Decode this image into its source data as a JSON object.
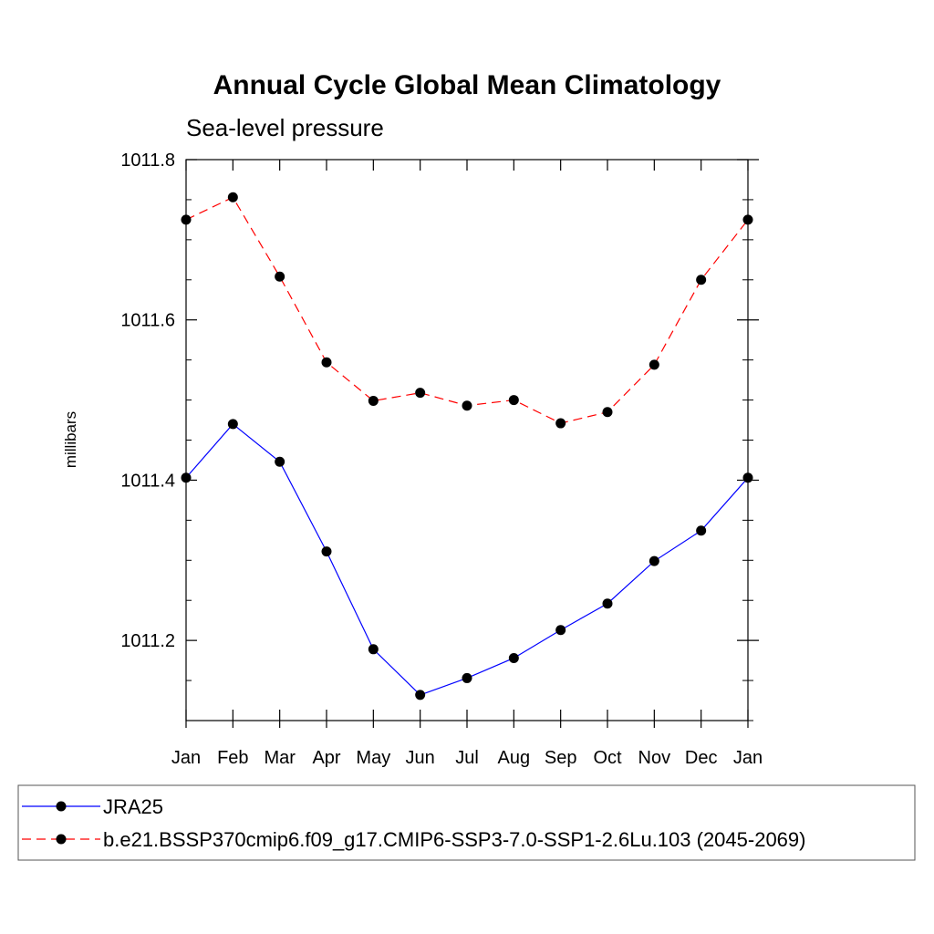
{
  "chart_data": {
    "type": "line",
    "title": "Annual Cycle Global Mean Climatology",
    "subtitle": "Sea-level pressure",
    "xlabel": "",
    "ylabel": "millibars",
    "categories": [
      "Jan",
      "Feb",
      "Mar",
      "Apr",
      "May",
      "Jun",
      "Jul",
      "Aug",
      "Sep",
      "Oct",
      "Nov",
      "Dec",
      "Jan"
    ],
    "ylim": [
      1011.1,
      1011.8
    ],
    "yticks": [
      1011.2,
      1011.4,
      1011.6,
      1011.8
    ],
    "ytick_labels": [
      "1011.2",
      "1011.4",
      "1011.6",
      "1011.8"
    ],
    "grid": false,
    "legend_position": "bottom",
    "series": [
      {
        "name": "JRA25",
        "color": "#0000ff",
        "dash": "solid",
        "marker": "circle",
        "values": [
          1011.403,
          1011.47,
          1011.423,
          1011.311,
          1011.189,
          1011.132,
          1011.153,
          1011.178,
          1011.213,
          1011.246,
          1011.299,
          1011.337,
          1011.403
        ]
      },
      {
        "name": "b.e21.BSSP370cmip6.f09_g17.CMIP6-SSP3-7.0-SSP1-2.6Lu.103 (2045-2069)",
        "color": "#ff0000",
        "dash": "dashed",
        "marker": "circle",
        "values": [
          1011.725,
          1011.753,
          1011.654,
          1011.547,
          1011.499,
          1011.509,
          1011.493,
          1011.5,
          1011.471,
          1011.485,
          1011.544,
          1011.65,
          1011.725
        ]
      }
    ]
  }
}
